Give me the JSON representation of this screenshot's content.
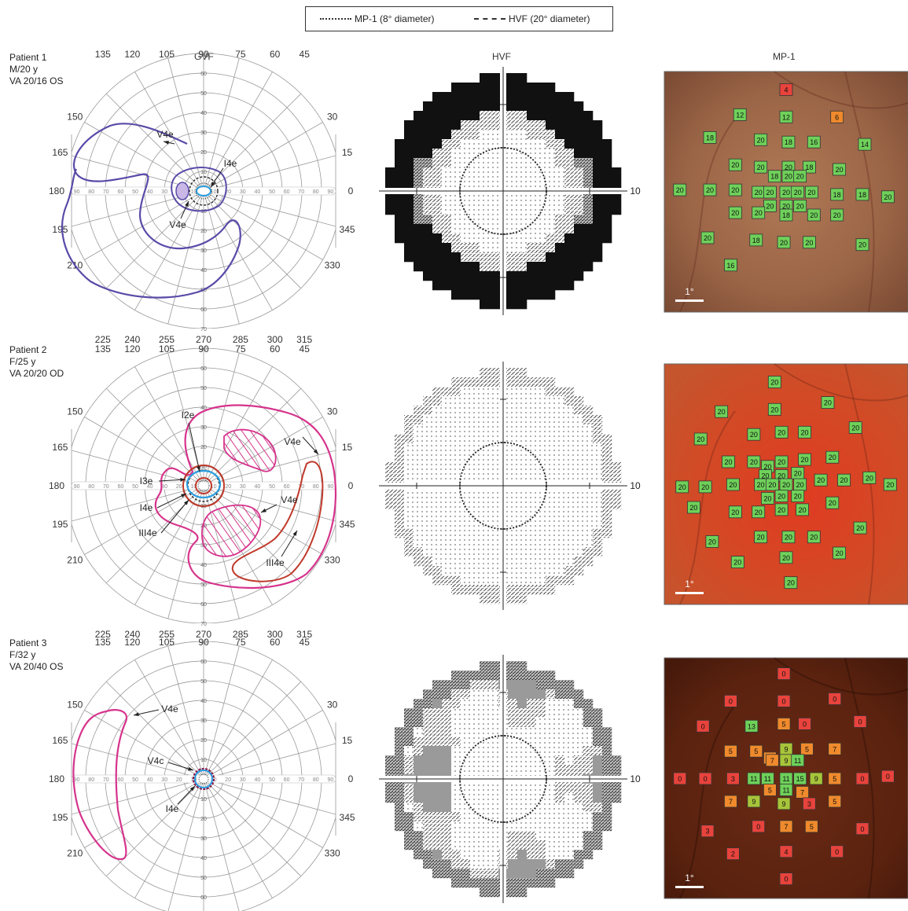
{
  "legend": {
    "mp1": "MP-1 (8° diameter)",
    "hvf": "HVF (20° diameter)"
  },
  "column_headers": [
    "GVF",
    "HVF",
    "MP-1"
  ],
  "gvf_axis": {
    "angle_labels": [
      "0",
      "15",
      "30",
      "45",
      "60",
      "75",
      "90",
      "105",
      "120",
      "135",
      "150",
      "165",
      "180",
      "195",
      "210",
      "225",
      "240",
      "255",
      "270",
      "285",
      "300",
      "315",
      "330",
      "345"
    ],
    "radial_labels": [
      "10",
      "20",
      "30",
      "40",
      "50",
      "60",
      "70"
    ],
    "horizontal_labels": [
      "90",
      "80",
      "70",
      "60",
      "50",
      "40",
      "30",
      "20",
      "10",
      "10",
      "20",
      "30",
      "40",
      "50",
      "60",
      "70",
      "80",
      "90"
    ]
  },
  "hvf_axis": {
    "tick_label": "10"
  },
  "scale_bar_label": "1°",
  "colors": {
    "v4e_p1": "#5a4aa8",
    "pink": "#d6338c",
    "red": "#c0392b",
    "blue": "#2a9de0",
    "green_cell": "#6fd15a",
    "orange_cell": "#f08a2c",
    "red_cell": "#e8433c"
  },
  "patients": [
    {
      "label": "Patient 1",
      "demographics": "M/20 y",
      "acuity": "VA 20/16 OS",
      "isopter_labels": [
        "V4e",
        "I4e",
        "V4e"
      ],
      "mp1_values": [
        "4",
        "12",
        "12",
        "6",
        "18",
        "20",
        "18",
        "16",
        "14",
        "20",
        "20",
        "20",
        "18",
        "20",
        "18",
        "20",
        "20",
        "20",
        "20",
        "20",
        "20",
        "20",
        "20",
        "20",
        "20",
        "18",
        "18",
        "20",
        "20",
        "20",
        "20",
        "20",
        "20",
        "18",
        "20",
        "20",
        "20",
        "18",
        "20",
        "20",
        "20",
        "16"
      ]
    },
    {
      "label": "Patient 2",
      "demographics": "F/25 y",
      "acuity": "VA 20/20 OD",
      "isopter_labels": [
        "I2e",
        "V4e",
        "I3e",
        "I4e",
        "III4e",
        "V4e",
        "III4e"
      ],
      "mp1_values": [
        "20",
        "20",
        "20",
        "20",
        "20",
        "20",
        "20",
        "20",
        "20",
        "20",
        "20",
        "20",
        "20",
        "20",
        "20",
        "20",
        "20",
        "20",
        "20",
        "20",
        "20",
        "20",
        "20",
        "20",
        "20",
        "20",
        "20",
        "20",
        "20",
        "20",
        "20",
        "20",
        "20",
        "20",
        "20",
        "20",
        "20",
        "20",
        "20",
        "20",
        "20",
        "20",
        "20",
        "20",
        "20",
        "20",
        "20"
      ]
    },
    {
      "label": "Patient 3",
      "demographics": "F/32 y",
      "acuity": "VA 20/40 OS",
      "isopter_labels": [
        "V4e",
        "V4c",
        "I4e"
      ],
      "mp1_values": [
        "0",
        "0",
        "0",
        "0",
        "0",
        "13",
        "5",
        "0",
        "0",
        "5",
        "5",
        "7",
        "9",
        "5",
        "7",
        "7",
        "9",
        "11",
        "0",
        "0",
        "3",
        "11",
        "11",
        "11",
        "15",
        "9",
        "5",
        "0",
        "0",
        "5",
        "11",
        "7",
        "7",
        "9",
        "9",
        "3",
        "5",
        "3",
        "0",
        "7",
        "5",
        "0",
        "2",
        "4",
        "0",
        "0"
      ]
    }
  ]
}
